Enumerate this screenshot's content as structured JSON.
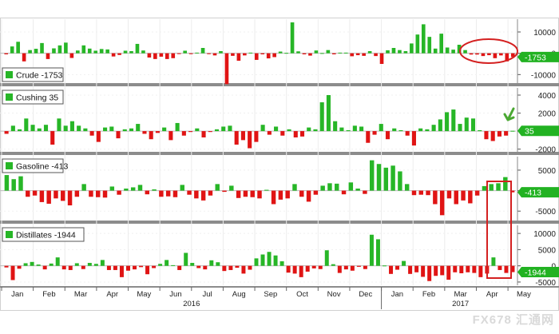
{
  "colors": {
    "positive": "#27b627",
    "negative": "#e01414",
    "tag": "#22b222",
    "separator": "#8c8c8c",
    "grid": "#c8c8c8",
    "annotation_red": "#d42020",
    "annotation_green": "#4aa832"
  },
  "legend_icon": "green-square-icon",
  "arrow_icon": "down-left-arrow-icon",
  "watermark": "FX678 汇通网",
  "x_axis": {
    "months": [
      "Jan",
      "Feb",
      "Mar",
      "Apr",
      "May",
      "Jun",
      "Jul",
      "Aug",
      "Sep",
      "Oct",
      "Nov",
      "Dec",
      "Jan",
      "Feb",
      "Mar",
      "Apr",
      "May"
    ],
    "years": [
      "2016",
      "2017"
    ]
  },
  "chart_data": [
    {
      "type": "bar",
      "title": "Crude -1753",
      "legend": "Crude -1753",
      "last_value_label": "-1753",
      "ylim": [
        -14000,
        16000
      ],
      "yticks": [
        -10000,
        0,
        10000
      ],
      "ytick_labels": [
        "-10000",
        "0",
        "10000"
      ],
      "values": [
        -500,
        3200,
        5400,
        -3800,
        1500,
        2100,
        4800,
        -2700,
        2300,
        3700,
        5000,
        -2200,
        1300,
        3700,
        2200,
        1200,
        2000,
        1800,
        -1500,
        -800,
        1200,
        1000,
        4400,
        1300,
        -2000,
        -2700,
        -1600,
        -2700,
        -2300,
        -300,
        1200,
        -400,
        300,
        2500,
        -400,
        -1000,
        1000,
        -14500,
        -1200,
        -3500,
        -1000,
        300,
        -3100,
        -500,
        -2400,
        -1800,
        800,
        200,
        14500,
        900,
        -500,
        -1100,
        1300,
        100,
        1500,
        -500,
        300,
        300,
        -1400,
        -900,
        -1200,
        1000,
        -1300,
        -5000,
        1400,
        2500,
        1500,
        1000,
        4600,
        8800,
        13600,
        7700,
        2200,
        9200,
        2700,
        1700,
        4000,
        1500,
        -600,
        -600,
        -1300,
        -900,
        -2300,
        -1000,
        -3800,
        -1753
      ]
    },
    {
      "type": "bar",
      "title": "Cushing 35",
      "legend": "Cushing 35",
      "last_value_label": "35",
      "ylim": [
        -2300,
        4800
      ],
      "yticks": [
        -2000,
        0,
        2000,
        4000
      ],
      "ytick_labels": [
        "-2000",
        "0",
        "2000",
        "4000"
      ],
      "values": [
        -300,
        600,
        200,
        1400,
        700,
        300,
        700,
        -1500,
        1400,
        600,
        1100,
        600,
        300,
        -500,
        -1200,
        400,
        500,
        -800,
        200,
        300,
        800,
        -300,
        -900,
        -200,
        400,
        -1000,
        900,
        -500,
        -100,
        300,
        -700,
        -100,
        200,
        500,
        600,
        -1500,
        -1000,
        -1900,
        -1200,
        700,
        -400,
        500,
        -500,
        200,
        -700,
        -600,
        400,
        200,
        3200,
        4000,
        1100,
        400,
        100,
        600,
        500,
        -1300,
        -400,
        800,
        -900,
        300,
        100,
        -500,
        -1600,
        300,
        200,
        700,
        1300,
        2100,
        2400,
        800,
        1500,
        1400,
        100,
        -900,
        -1100,
        -600,
        -500,
        35
      ]
    },
    {
      "type": "bar",
      "title": "Gasoline -413",
      "legend": "Gasoline -413",
      "last_value_label": "-413",
      "ylim": [
        -7300,
        8300
      ],
      "yticks": [
        -5000,
        0,
        5000
      ],
      "ytick_labels": [
        "-5000",
        "0",
        "5000"
      ],
      "values": [
        3800,
        2800,
        3500,
        -1500,
        -1200,
        -2800,
        -3200,
        -1900,
        -2500,
        -3600,
        -1500,
        1600,
        -1500,
        -1600,
        -1700,
        1000,
        -1000,
        500,
        800,
        1400,
        -900,
        300,
        -1500,
        -1400,
        -1600,
        1400,
        -1000,
        -1900,
        -2400,
        -1200,
        1600,
        -300,
        1200,
        -1800,
        -1500,
        -1600,
        -1900,
        200,
        -3300,
        -2200,
        -1900,
        1600,
        -1500,
        -2700,
        -1000,
        1200,
        1800,
        1700,
        -900,
        2000,
        500,
        -800,
        7400,
        6500,
        5600,
        6100,
        4700,
        1600,
        -1100,
        -1000,
        -1100,
        -3300,
        -6000,
        -1900,
        -3300,
        -2400,
        -3100,
        -1200,
        1100,
        1600,
        1800,
        3300,
        -413
      ]
    },
    {
      "type": "bar",
      "title": "Distillates -1944",
      "legend": "Distillates -1944",
      "last_value_label": "-1944",
      "ylim": [
        -6000,
        12500
      ],
      "yticks": [
        -5000,
        0,
        5000,
        10000
      ],
      "ytick_labels": [
        "-5000",
        "0",
        "5000",
        "10000"
      ],
      "values": [
        -500,
        -4400,
        -900,
        800,
        1200,
        400,
        -1100,
        700,
        2600,
        -1100,
        -1300,
        800,
        -1000,
        900,
        600,
        1800,
        -1300,
        -1300,
        -3500,
        -1500,
        -1100,
        -400,
        -2600,
        -700,
        600,
        1800,
        200,
        -1300,
        4000,
        900,
        -700,
        -1100,
        1700,
        1100,
        -1600,
        -1300,
        -600,
        -2400,
        -1200,
        2300,
        3500,
        4300,
        3200,
        1400,
        -2100,
        -2400,
        -3500,
        -1800,
        -800,
        -1000,
        4800,
        500,
        -2200,
        -1100,
        -1500,
        -300,
        -1000,
        9600,
        8200,
        100,
        -2500,
        -1200,
        1500,
        -2500,
        -2000,
        -3400,
        -4700,
        -3100,
        -2900,
        -4300,
        -2000,
        -2300,
        -2000,
        -2200,
        -3500,
        -2400,
        2600,
        -1300,
        -2200,
        -1944
      ]
    }
  ]
}
